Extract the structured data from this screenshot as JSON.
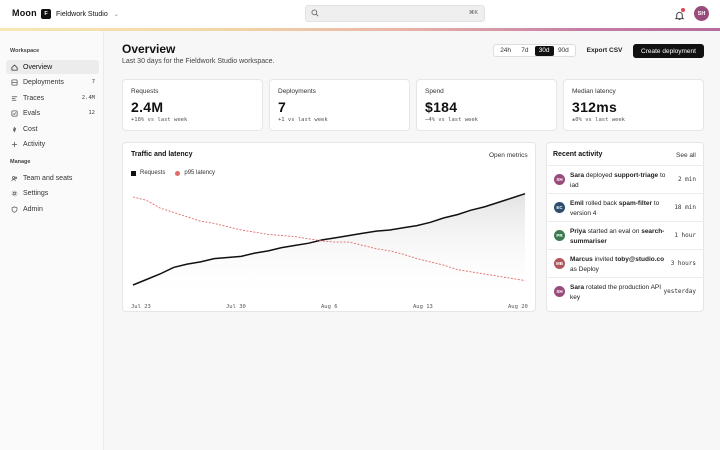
{
  "app": {
    "name": "Moon"
  },
  "workspace": {
    "initial": "F",
    "name": "Fieldwork Studio"
  },
  "search": {
    "shortcut": "⌘K"
  },
  "user": {
    "initials": "SH"
  },
  "sidebar": {
    "sections": [
      {
        "title": "Workspace",
        "items": [
          {
            "label": "Overview",
            "icon": "home-icon",
            "count": "",
            "active": true
          },
          {
            "label": "Deployments",
            "icon": "deploy-icon",
            "count": "7"
          },
          {
            "label": "Traces",
            "icon": "trace-icon",
            "count": "2.4M"
          },
          {
            "label": "Evals",
            "icon": "evals-icon",
            "count": "12"
          },
          {
            "label": "Cost",
            "icon": "cost-icon",
            "count": ""
          },
          {
            "label": "Activity",
            "icon": "activity-icon",
            "count": ""
          }
        ]
      },
      {
        "title": "Manage",
        "items": [
          {
            "label": "Team and seats",
            "icon": "team-icon",
            "count": ""
          },
          {
            "label": "Settings",
            "icon": "gear-icon",
            "count": ""
          },
          {
            "label": "Admin",
            "icon": "shield-icon",
            "count": ""
          }
        ]
      }
    ]
  },
  "header": {
    "title": "Overview",
    "subtitle": "Last 30 days for the Fieldwork Studio workspace.",
    "ranges": [
      "24h",
      "7d",
      "30d",
      "90d"
    ],
    "active_range": "30d",
    "export_label": "Export CSV",
    "create_label": "Create deployment"
  },
  "kpis": [
    {
      "label": "Requests",
      "value": "2.4M",
      "delta": "+18% vs last week",
      "trend": "up"
    },
    {
      "label": "Deployments",
      "value": "7",
      "delta": "+1 vs last week",
      "trend": "up"
    },
    {
      "label": "Spend",
      "value": "$184",
      "delta": "−4% vs last week",
      "trend": "down"
    },
    {
      "label": "Median latency",
      "value": "312ms",
      "delta": "±0% vs last week",
      "trend": "flat"
    }
  ],
  "traffic": {
    "title": "Traffic and latency",
    "link": "Open metrics",
    "legend": [
      "Requests",
      "p95 latency"
    ]
  },
  "chart_data": {
    "type": "line",
    "x_ticks": [
      "Jul 23",
      "Jul 30",
      "Aug 6",
      "Aug 13",
      "Aug 20"
    ],
    "series": [
      {
        "name": "Requests",
        "color": "#111111",
        "values": [
          10,
          15,
          20,
          26,
          29,
          31,
          34,
          35,
          36,
          39,
          41,
          44,
          46,
          48,
          51,
          53,
          55,
          57,
          59,
          60,
          62,
          64,
          67,
          71,
          74,
          78,
          81,
          85,
          89,
          93
        ]
      },
      {
        "name": "p95 latency",
        "color": "#e06b6b",
        "dashed": true,
        "values": [
          90,
          87,
          80,
          76,
          72,
          68,
          66,
          63,
          60,
          58,
          56,
          55,
          54,
          52,
          50,
          49,
          49,
          46,
          43,
          41,
          38,
          34,
          31,
          28,
          24,
          22,
          20,
          18,
          16,
          14
        ]
      }
    ],
    "ylim": [
      0,
      100
    ],
    "grid": false,
    "legend_position": "top-left"
  },
  "activity": {
    "title": "Recent activity",
    "link": "See all",
    "items": [
      {
        "initials": "SH",
        "color": "#9a4b7e",
        "actor": "Sara",
        "verb": " deployed ",
        "target": "support-triage",
        "rest": " to iad",
        "time": "2 min"
      },
      {
        "initials": "EC",
        "color": "#2e4d6e",
        "actor": "Emil",
        "verb": " rolled back ",
        "target": "spam-filter",
        "rest": " to version 4",
        "time": "18 min"
      },
      {
        "initials": "PR",
        "color": "#3e7a4f",
        "actor": "Priya",
        "verb": " started an eval on ",
        "target": "search-summariser",
        "rest": "",
        "time": "1 hour"
      },
      {
        "initials": "MB",
        "color": "#b0575a",
        "actor": "Marcus",
        "verb": " invited ",
        "target": "toby@studio.co",
        "rest": " as Deploy",
        "time": "3 hours"
      },
      {
        "initials": "SH",
        "color": "#9a4b7e",
        "actor": "Sara",
        "verb": " rotated the production API key",
        "target": "",
        "rest": "",
        "time": "yesterday"
      }
    ]
  }
}
